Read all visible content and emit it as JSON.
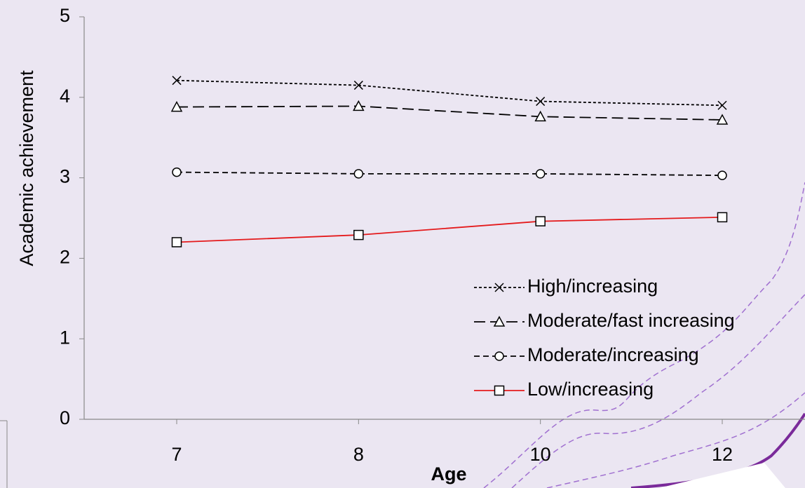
{
  "chart_data": {
    "type": "line",
    "y_label": "Academic achievement",
    "x_label": "Age",
    "categories": [
      "7",
      "8",
      "10",
      "12"
    ],
    "ylim": [
      0,
      5
    ],
    "yticks": [
      0,
      1,
      2,
      3,
      4,
      5
    ],
    "legend": "lower-right",
    "series": [
      {
        "name": "High/increasing",
        "color": "#000000",
        "dash": "4 3",
        "marker": "x",
        "values": [
          4.21,
          4.15,
          3.95,
          3.9
        ]
      },
      {
        "name": "Moderate/fast increasing",
        "color": "#000000",
        "dash": "16 7",
        "marker": "triangle",
        "values": [
          3.88,
          3.89,
          3.76,
          3.72
        ]
      },
      {
        "name": "Moderate/increasing",
        "color": "#000000",
        "dash": "8 5",
        "marker": "circle",
        "values": [
          3.07,
          3.05,
          3.05,
          3.03
        ]
      },
      {
        "name": "Low/increasing",
        "color": "#e41a1c",
        "dash": "",
        "marker": "square",
        "values": [
          2.2,
          2.29,
          2.46,
          2.51
        ]
      }
    ]
  }
}
